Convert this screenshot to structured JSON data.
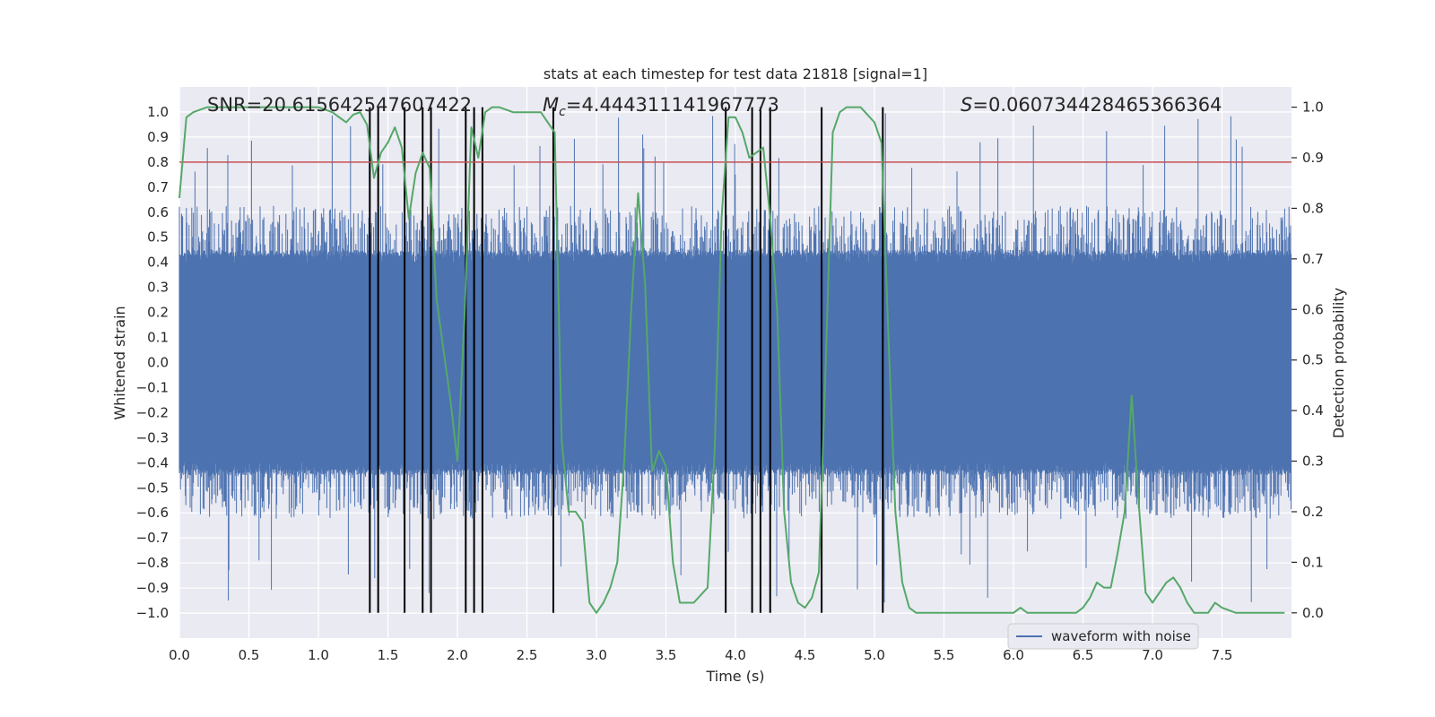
{
  "chart_data": {
    "type": "line",
    "title": "stats at each timestep for test data 21818 [signal=1]",
    "xlabel": "Time (s)",
    "ylabel": "Whitened strain",
    "ylabel_right": "Detection probability",
    "xlim": [
      0.0,
      8.0
    ],
    "ylim": [
      -1.1,
      1.1
    ],
    "ylim_right": [
      -0.05,
      1.04
    ],
    "x_ticks": [
      0.0,
      0.5,
      1.0,
      1.5,
      2.0,
      2.5,
      3.0,
      3.5,
      4.0,
      4.5,
      5.0,
      5.5,
      6.0,
      6.5,
      7.0,
      7.5
    ],
    "x_tick_labels": [
      "0.0",
      "0.5",
      "1.0",
      "1.5",
      "2.0",
      "2.5",
      "3.0",
      "3.5",
      "4.0",
      "4.5",
      "5.0",
      "5.5",
      "6.0",
      "6.5",
      "7.0",
      "7.5"
    ],
    "y_ticks": [
      1.0,
      0.9,
      0.8,
      0.7,
      0.6,
      0.5,
      0.4,
      0.3,
      0.2,
      0.1,
      0.0,
      -0.1,
      -0.2,
      -0.3,
      -0.4,
      -0.5,
      -0.6,
      -0.7,
      -0.8,
      -0.9,
      -1.0
    ],
    "y_tick_labels": [
      "1.0",
      "0.9",
      "0.8",
      "0.7",
      "0.6",
      "0.5",
      "0.4",
      "0.3",
      "0.2",
      "0.1",
      "0.0",
      "−0.1",
      "−0.2",
      "−0.3",
      "−0.4",
      "−0.5",
      "−0.6",
      "−0.7",
      "−0.8",
      "−0.9",
      "−1.0"
    ],
    "y2_ticks": [
      1.0,
      0.9,
      0.8,
      0.7,
      0.6,
      0.5,
      0.4,
      0.3,
      0.2,
      0.1,
      0.0
    ],
    "y2_tick_labels": [
      "1.0",
      "0.9",
      "0.8",
      "0.7",
      "0.6",
      "0.5",
      "0.4",
      "0.3",
      "0.2",
      "0.1",
      "0.0"
    ],
    "threshold": {
      "value": 0.8,
      "axis": "left",
      "color": "#c44e52"
    },
    "annotations": [
      {
        "name": "snr",
        "label": "SNR",
        "value": "20.615642547607422",
        "text": "SNR=20.615642547607422"
      },
      {
        "name": "chirp-mass",
        "label": "Mc",
        "value": "4.444311141967773",
        "text": "Mc=4.444311141967773"
      },
      {
        "name": "s-statistic",
        "label": "S",
        "value": "0.0607344284653663​64",
        "text": "S=0.0607344284653663​64"
      }
    ],
    "vertical_lines": [
      1.37,
      1.43,
      1.62,
      1.75,
      1.81,
      2.06,
      2.12,
      2.18,
      2.69,
      3.93,
      4.12,
      4.18,
      4.25,
      4.62,
      5.06
    ],
    "series": [
      {
        "name": "waveform with noise",
        "axis": "left",
        "color": "#4c72b0",
        "kind": "noise",
        "envelope": 0.4,
        "spike_max": 1.0
      },
      {
        "name": "detection probability",
        "axis": "right",
        "color": "#55a868",
        "x": [
          0.0,
          0.05,
          0.1,
          0.2,
          0.5,
          0.8,
          1.0,
          1.1,
          1.2,
          1.25,
          1.3,
          1.35,
          1.4,
          1.45,
          1.5,
          1.55,
          1.6,
          1.65,
          1.7,
          1.75,
          1.8,
          1.85,
          1.9,
          1.95,
          2.0,
          2.05,
          2.1,
          2.15,
          2.2,
          2.25,
          2.3,
          2.4,
          2.5,
          2.6,
          2.7,
          2.75,
          2.8,
          2.85,
          2.9,
          2.95,
          3.0,
          3.05,
          3.1,
          3.15,
          3.2,
          3.25,
          3.3,
          3.35,
          3.4,
          3.45,
          3.5,
          3.55,
          3.6,
          3.65,
          3.7,
          3.8,
          3.85,
          3.9,
          3.95,
          4.0,
          4.05,
          4.1,
          4.15,
          4.2,
          4.25,
          4.3,
          4.35,
          4.4,
          4.45,
          4.5,
          4.55,
          4.6,
          4.65,
          4.7,
          4.75,
          4.8,
          4.9,
          5.0,
          5.05,
          5.1,
          5.15,
          5.2,
          5.25,
          5.3,
          5.35,
          5.45,
          5.6,
          5.8,
          5.9,
          6.0,
          6.05,
          6.1,
          6.2,
          6.3,
          6.35,
          6.45,
          6.5,
          6.55,
          6.6,
          6.65,
          6.7,
          6.75,
          6.8,
          6.85,
          6.9,
          6.95,
          7.0,
          7.05,
          7.1,
          7.15,
          7.2,
          7.25,
          7.3,
          7.35,
          7.4,
          7.45,
          7.5,
          7.6,
          7.7,
          7.8,
          7.95
        ],
        "values": [
          0.82,
          0.98,
          0.99,
          1.0,
          1.0,
          1.0,
          1.0,
          0.99,
          0.97,
          0.985,
          0.99,
          0.965,
          0.86,
          0.91,
          0.93,
          0.96,
          0.92,
          0.78,
          0.87,
          0.91,
          0.88,
          0.62,
          0.52,
          0.42,
          0.3,
          0.58,
          0.96,
          0.9,
          0.99,
          1.0,
          1.0,
          0.99,
          0.99,
          0.99,
          0.95,
          0.34,
          0.2,
          0.2,
          0.18,
          0.02,
          0.0,
          0.02,
          0.05,
          0.1,
          0.3,
          0.6,
          0.83,
          0.65,
          0.28,
          0.32,
          0.29,
          0.1,
          0.02,
          0.02,
          0.02,
          0.05,
          0.32,
          0.78,
          0.98,
          0.98,
          0.95,
          0.9,
          0.91,
          0.92,
          0.78,
          0.6,
          0.2,
          0.06,
          0.02,
          0.01,
          0.03,
          0.08,
          0.5,
          0.95,
          0.99,
          1.0,
          1.0,
          0.97,
          0.93,
          0.55,
          0.2,
          0.06,
          0.01,
          0.0,
          0.0,
          0.0,
          0.0,
          0.0,
          0.0,
          0.0,
          0.01,
          0.0,
          0.0,
          0.0,
          0.0,
          0.0,
          0.01,
          0.03,
          0.06,
          0.05,
          0.05,
          0.12,
          0.2,
          0.43,
          0.22,
          0.04,
          0.02,
          0.04,
          0.06,
          0.07,
          0.05,
          0.02,
          0.0,
          0.0,
          0.0,
          0.02,
          0.01,
          0.0,
          0.0,
          0.0,
          0.0
        ]
      }
    ],
    "legend": {
      "position": "lower-right",
      "entries": [
        "waveform with noise"
      ]
    }
  }
}
